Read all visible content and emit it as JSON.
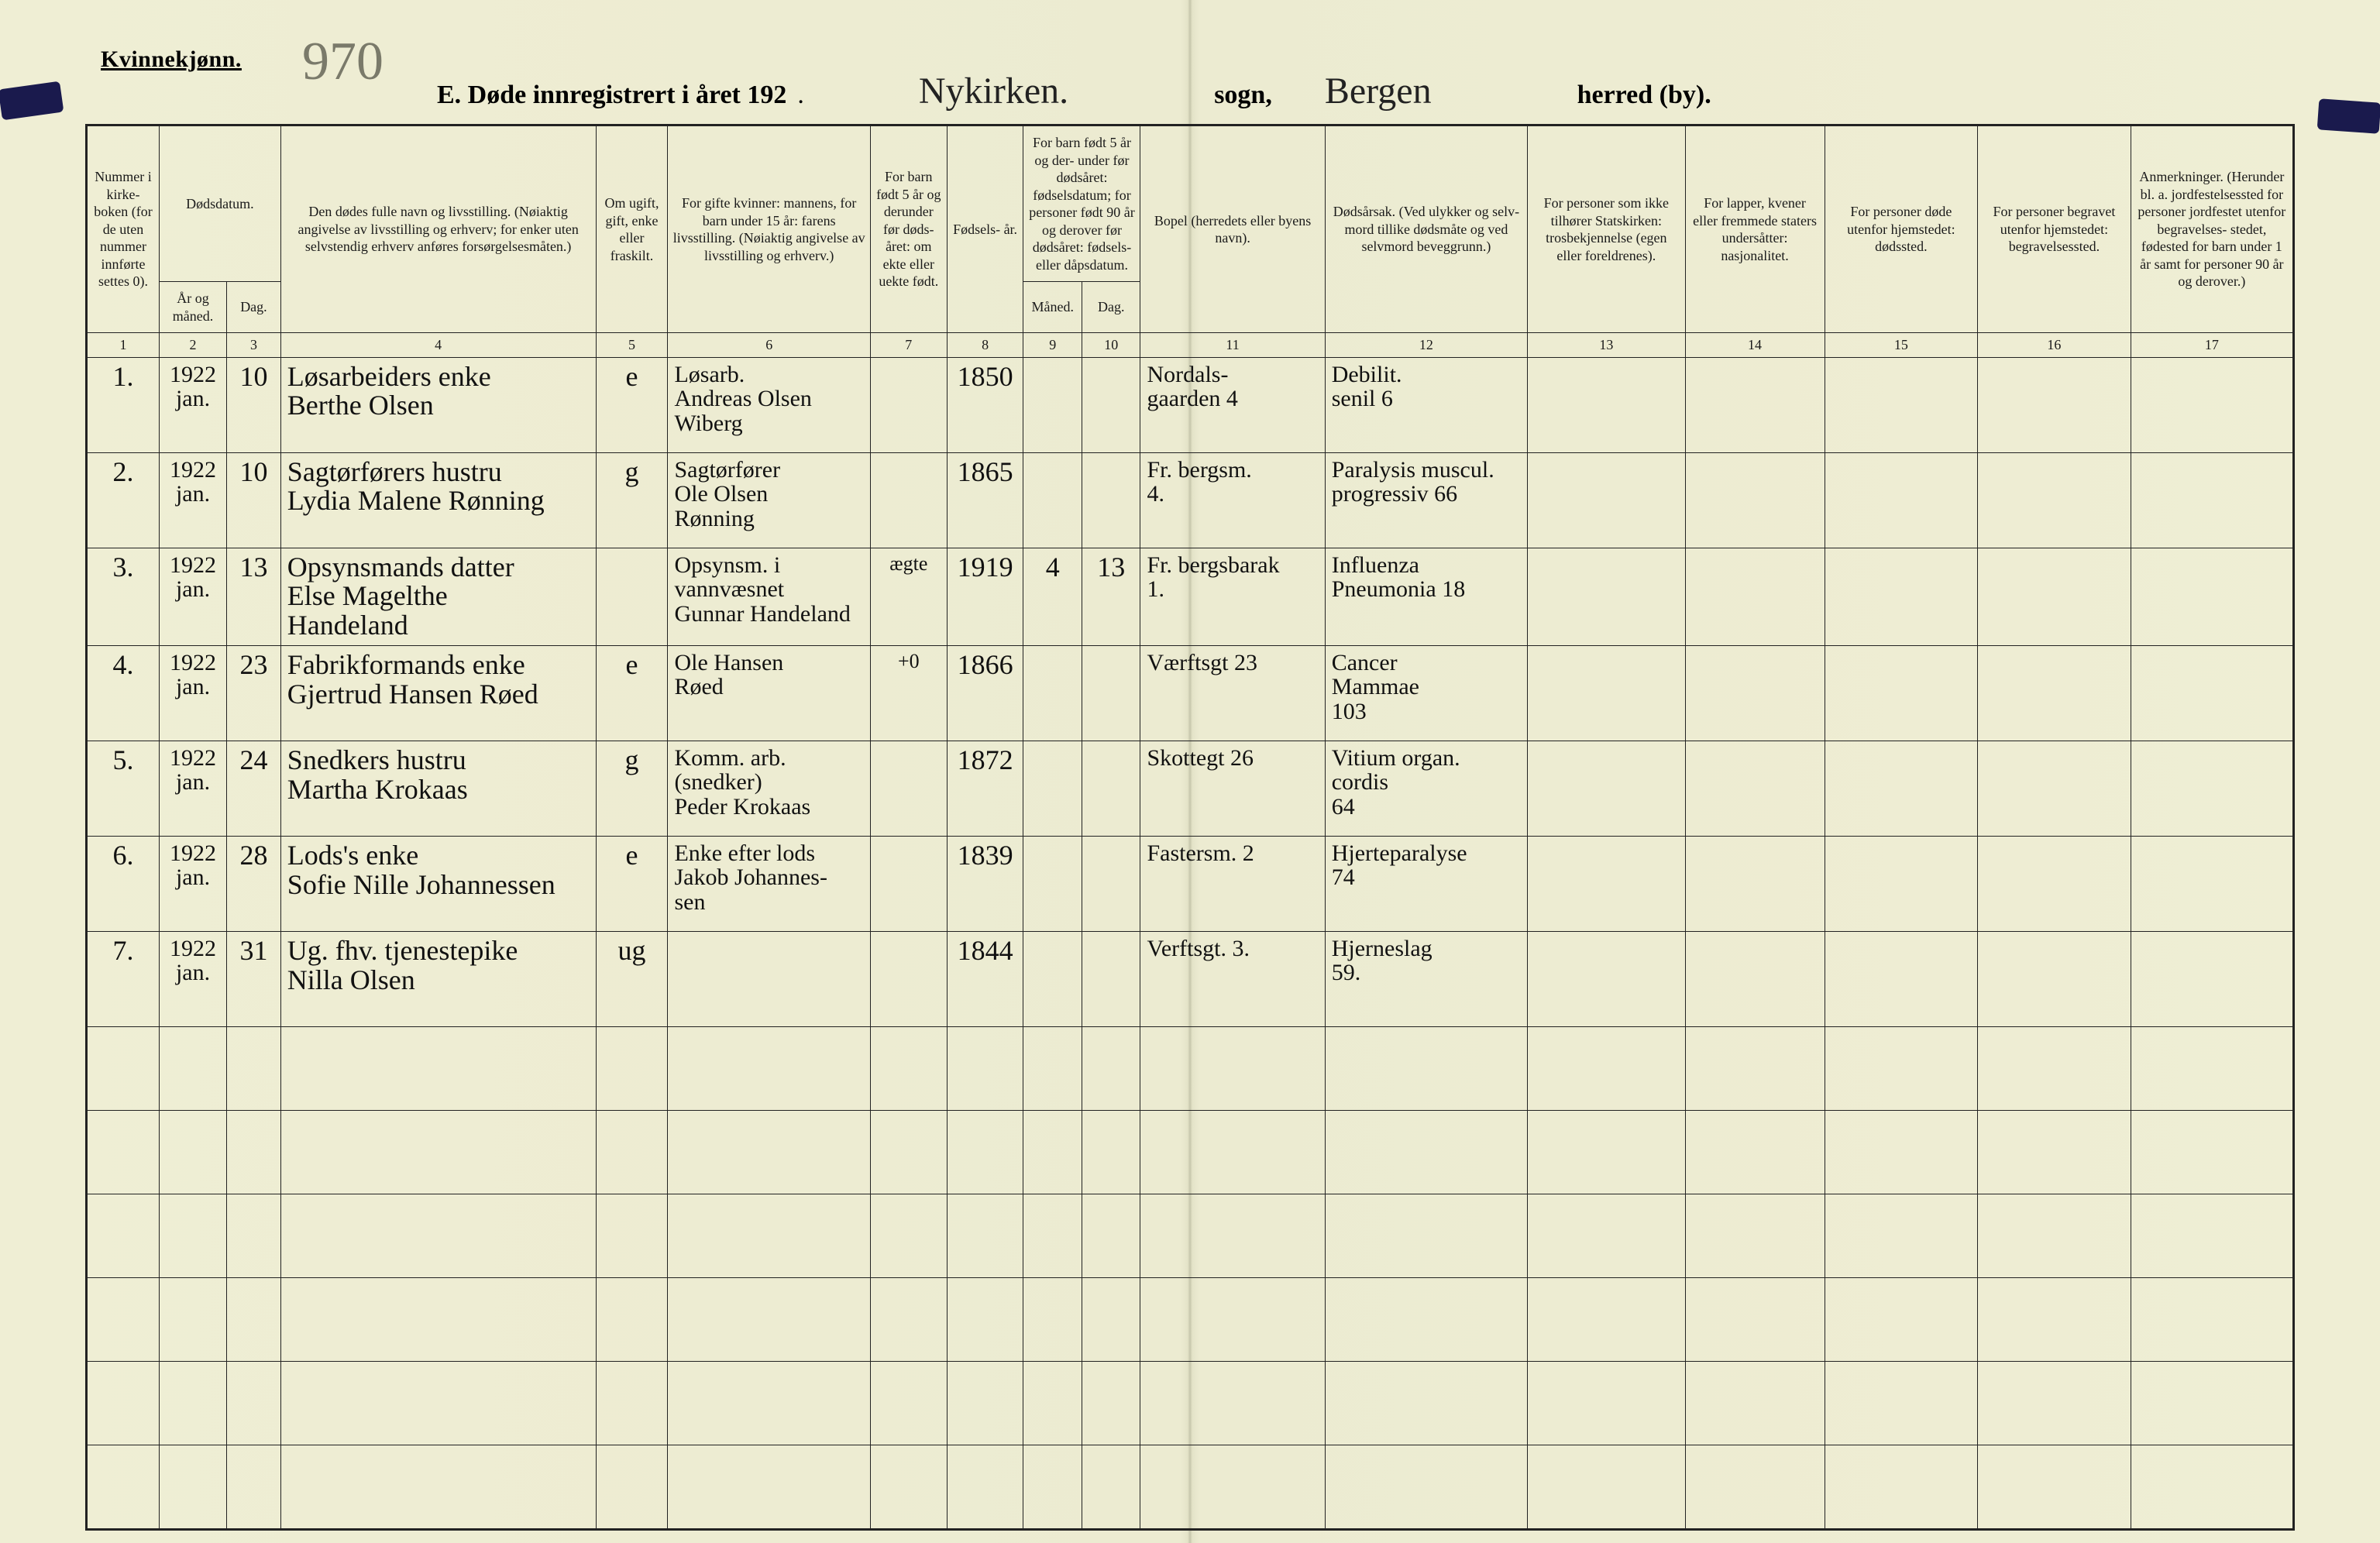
{
  "colors": {
    "paper_left": "#efeed4",
    "paper_right": "#efeed4",
    "ink": "#1a1a1a",
    "pencil": "#7a7a6a",
    "rule": "#222222",
    "clip": "#1a1a4d"
  },
  "typography": {
    "print_family": "Times New Roman",
    "print_header_size_pt": 18,
    "print_title_size_pt": 28,
    "script_family": "Brush Script MT",
    "script_size_pt": 30
  },
  "header": {
    "kjonn": "Kvinnekjønn.",
    "page_number": "970",
    "title_prefix": "E.  Døde innregistrert i året 192",
    "year_suffix_blank": "    .",
    "sogn_label": "sogn,",
    "sogn_value": "Nykirken.",
    "herred_label": "herred (by).",
    "herred_value": "Bergen"
  },
  "columns": {
    "c1": "Nummer i kirke-\nboken\n(for de uten nummer innførte settes 0).",
    "c2_group": "Dødsdatum.",
    "c2": "År\nog\nmåned.",
    "c3": "Dag.",
    "c4": "Den dødes fulle navn og livsstilling.\n(Nøiaktig angivelse av livsstilling og erhverv; for enker uten selvstendig erhverv anføres forsørgelsesmåten.)",
    "c5": "Om ugift, gift, enke eller fraskilt.",
    "c6": "For gifte kvinner:\nmannens,\nfor barn under 15 år:\nfarens livsstilling.\n(Nøiaktig angivelse av livsstilling og erhverv.)",
    "c7": "For barn født 5 år og derunder før døds-\nåret:\nom ekte eller uekte født.",
    "c8": "Fødsels-\når.",
    "c9_group": "For barn født 5 år og der-\nunder før dødsåret:\nfødselsdatum;\nfor personer født 90 år og derover før dødsåret:\nfødsels- eller dåpsdatum.",
    "c9": "Måned.",
    "c10": "Dag.",
    "c11": "Bopel\n(herredets eller byens navn).",
    "c12": "Dødsårsak.\n(Ved ulykker og selv-\nmord tillike dødsmåte og ved selvmord beveggrunn.)",
    "c13": "For personer som ikke tilhører Statskirken:\ntrosbekjennelse\n(egen eller foreldrenes).",
    "c14": "For lapper, kvener eller fremmede staters undersåtter:\nnasjonalitet.",
    "c15": "For personer døde utenfor hjemstedet:\ndødssted.",
    "c16": "For personer begravet utenfor hjemstedet:\nbegravelsessted.",
    "c17": "Anmerkninger.\n(Herunder bl. a. jordfestelsessted for personer jordfestet utenfor begravelses-\nstedet, fødested for barn under 1 år samt for personer 90 år og derover.)"
  },
  "colnums": [
    "1",
    "2",
    "3",
    "4",
    "5",
    "6",
    "7",
    "8",
    "9",
    "10",
    "11",
    "12",
    "13",
    "14",
    "15",
    "16",
    "17"
  ],
  "rows": [
    {
      "num": "1.",
      "ym": "1922\njan.",
      "day": "10",
      "name": "Løsarbeiders enke\nBerthe Olsen",
      "status": "e",
      "spouse": "Løsarb.\nAndreas Olsen\nWiberg",
      "ekte": "",
      "birth": "1850",
      "bm": "",
      "bd": "",
      "bopel": "Nordals-\ngaarden 4",
      "cause": "Debilit.\nsenil 6",
      "c13": "",
      "c14": "",
      "c15": "",
      "c16": "",
      "c17": ""
    },
    {
      "num": "2.",
      "ym": "1922\njan.",
      "day": "10",
      "name": "Sagtørførers hustru\nLydia Malene Rønning",
      "status": "g",
      "spouse": "Sagtørfører\nOle Olsen\nRønning",
      "ekte": "",
      "birth": "1865",
      "bm": "",
      "bd": "",
      "bopel": "Fr. bergsm.\n4.",
      "cause": "Paralysis muscul.\nprogressiv 66",
      "c13": "",
      "c14": "",
      "c15": "",
      "c16": "",
      "c17": ""
    },
    {
      "num": "3.",
      "ym": "1922\njan.",
      "day": "13",
      "name": "Opsynsmands datter\nElse Magelthe\nHandeland",
      "status": "",
      "spouse": "Opsynsm. i\nvannvæsnet\nGunnar Handeland",
      "ekte": "ægte",
      "birth": "1919",
      "bm": "4",
      "bd": "13",
      "bopel": "Fr. bergsbarak\n1.",
      "cause": "Influenza\nPneumonia 18",
      "c13": "",
      "c14": "",
      "c15": "",
      "c16": "",
      "c17": ""
    },
    {
      "num": "4.",
      "ym": "1922\njan.",
      "day": "23",
      "name": "Fabrikformands enke\nGjertrud Hansen Røed",
      "status": "e",
      "spouse": "Ole Hansen\nRøed",
      "ekte": "+0",
      "birth": "1866",
      "bm": "",
      "bd": "",
      "bopel": "Værftsgt 23",
      "cause": "Cancer\nMammae\n103",
      "c13": "",
      "c14": "",
      "c15": "",
      "c16": "",
      "c17": ""
    },
    {
      "num": "5.",
      "ym": "1922\njan.",
      "day": "24",
      "name": "Snedkers hustru\nMartha Krokaas",
      "status": "g",
      "spouse": "Komm. arb.\n(snedker)\nPeder Krokaas",
      "ekte": "",
      "birth": "1872",
      "bm": "",
      "bd": "",
      "bopel": "Skottegt 26",
      "cause": "Vitium organ.\ncordis\n64",
      "c13": "",
      "c14": "",
      "c15": "",
      "c16": "",
      "c17": ""
    },
    {
      "num": "6.",
      "ym": "1922\njan.",
      "day": "28",
      "name": "Lods's enke\nSofie Nille Johannessen",
      "status": "e",
      "spouse": "Enke efter lods\nJakob Johannes-\nsen",
      "ekte": "",
      "birth": "1839",
      "bm": "",
      "bd": "",
      "bopel": "Fastersm. 2",
      "cause": "Hjerteparalyse\n74",
      "c13": "",
      "c14": "",
      "c15": "",
      "c16": "",
      "c17": ""
    },
    {
      "num": "7.",
      "ym": "1922\njan.",
      "day": "31",
      "name": "Ug. fhv. tjenestepike\nNilla Olsen",
      "status": "ug",
      "spouse": "",
      "ekte": "",
      "birth": "1844",
      "bm": "",
      "bd": "",
      "bopel": "Verftsgt. 3.",
      "cause": "Hjerneslag\n59.",
      "c13": "",
      "c14": "",
      "c15": "",
      "c16": "",
      "c17": ""
    }
  ],
  "empty_rows": 6
}
